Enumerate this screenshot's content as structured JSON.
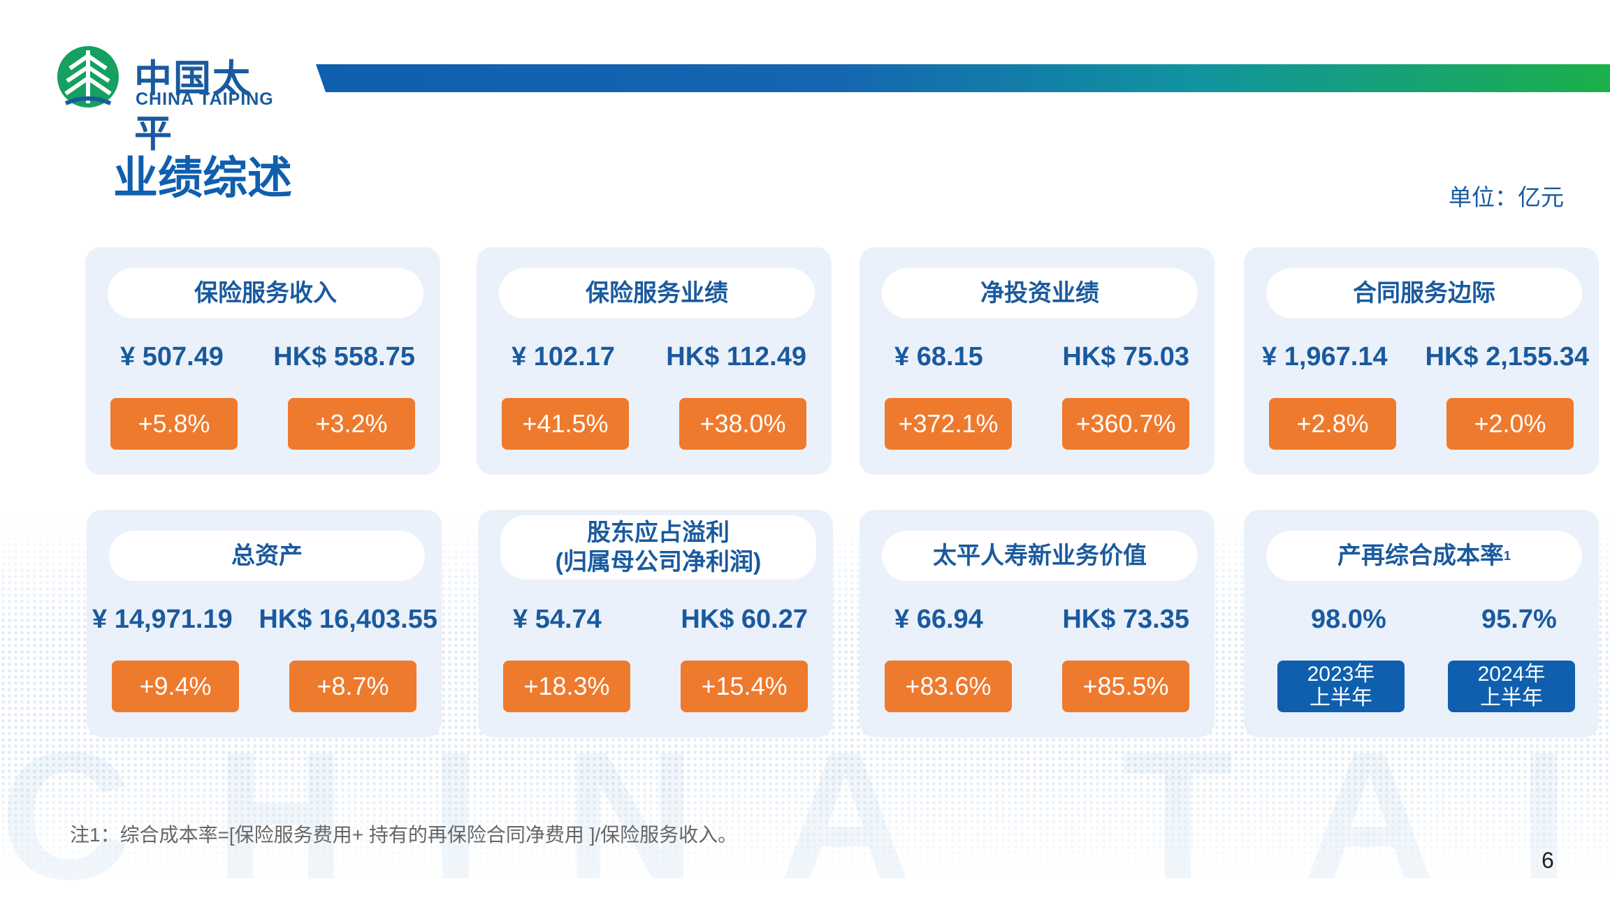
{
  "brand": {
    "name_cn": "中国太平",
    "name_en": "CHINA TAIPING",
    "watermark": "CHINA TAIPING"
  },
  "page": {
    "title": "业绩综述",
    "unit": "单位：亿元",
    "number": "6"
  },
  "colors": {
    "primary": "#0f5fae",
    "accent": "#ee7a2e",
    "card_bg": "#eaf0fa",
    "green": "#1bb04a"
  },
  "cards": [
    {
      "title": "保险服务收入",
      "rmb": "¥ 507.49",
      "hkd": "HK$ 558.75",
      "chg_rmb": "+5.8%",
      "chg_hkd": "+3.2%"
    },
    {
      "title": "保险服务业绩",
      "rmb": "¥ 102.17",
      "hkd": "HK$ 112.49",
      "chg_rmb": "+41.5%",
      "chg_hkd": "+38.0%"
    },
    {
      "title": "净投资业绩",
      "rmb": "¥ 68.15",
      "hkd": "HK$ 75.03",
      "chg_rmb": "+372.1%",
      "chg_hkd": "+360.7%"
    },
    {
      "title": "合同服务边际",
      "rmb": "¥ 1,967.14",
      "hkd": "HK$ 2,155.34",
      "chg_rmb": "+2.8%",
      "chg_hkd": "+2.0%"
    },
    {
      "title": "总资产",
      "rmb": "¥ 14,971.19",
      "hkd": "HK$ 16,403.55",
      "chg_rmb": "+9.4%",
      "chg_hkd": "+8.7%"
    },
    {
      "title_line1": "股东应占溢利",
      "title_line2": "(归属母公司净利润)",
      "rmb": "¥ 54.74",
      "hkd": "HK$ 60.27",
      "chg_rmb": "+18.3%",
      "chg_hkd": "+15.4%"
    },
    {
      "title": "太平人寿新业务价值",
      "rmb": "¥ 66.94",
      "hkd": "HK$ 73.35",
      "chg_rmb": "+83.6%",
      "chg_hkd": "+85.5%"
    },
    {
      "title": "产再综合成本率",
      "title_sup": "1",
      "val_2023": "98.0%",
      "val_2024": "95.7%",
      "label_2023_line1": "2023年",
      "label_2023_line2": "上半年",
      "label_2024_line1": "2024年",
      "label_2024_line2": "上半年"
    }
  ],
  "footnote": "注1：综合成本率=[保险服务费用+ 持有的再保险合同净费用 ]/保险服务收入。"
}
